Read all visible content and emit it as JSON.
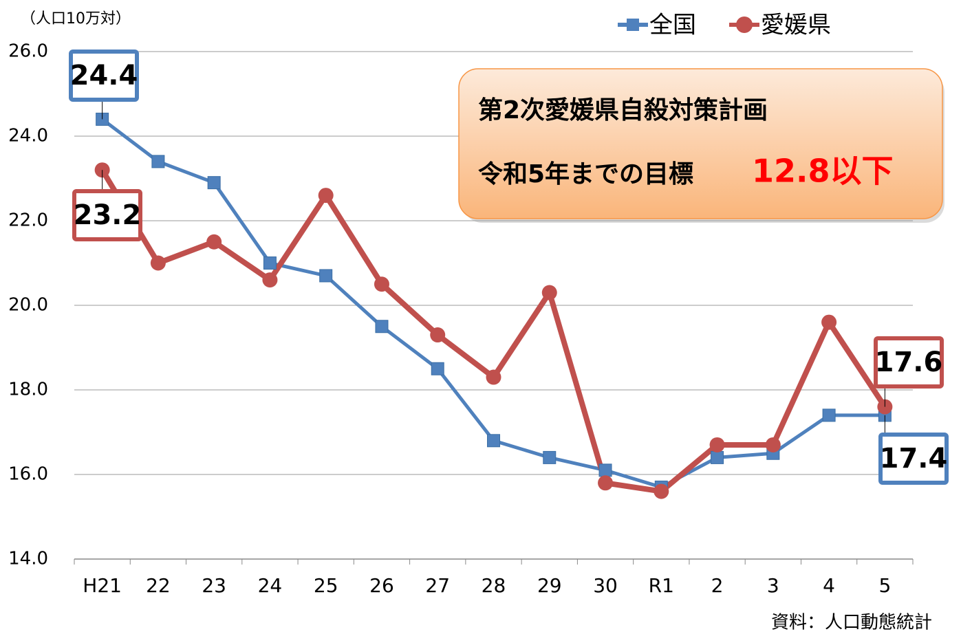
{
  "chart_data": {
    "type": "line",
    "y_unit_label": "（人口10万対）",
    "source": "資料：人口動態統計",
    "annotation": {
      "title": "第2次愛媛県自殺対策計画",
      "goal_label": "令和5年までの目標",
      "goal_value": "12.8以下"
    },
    "categories": [
      "H21",
      "22",
      "23",
      "24",
      "25",
      "26",
      "27",
      "28",
      "29",
      "30",
      "R1",
      "2",
      "3",
      "4",
      "5"
    ],
    "series": [
      {
        "name": "全国",
        "color": "#4f81bd",
        "marker": "square",
        "values": [
          24.4,
          23.4,
          22.9,
          21.0,
          20.7,
          19.5,
          18.5,
          16.8,
          16.4,
          16.1,
          15.7,
          16.4,
          16.5,
          17.4,
          17.4
        ]
      },
      {
        "name": "愛媛県",
        "color": "#c0504d",
        "marker": "circle",
        "values": [
          23.2,
          21.0,
          21.5,
          20.6,
          22.6,
          20.5,
          19.3,
          18.3,
          20.3,
          15.8,
          15.6,
          16.7,
          16.7,
          19.6,
          17.6
        ]
      }
    ],
    "ylim": [
      14,
      26
    ],
    "yticks": [
      {
        "value": 14,
        "label": "14.0"
      },
      {
        "value": 16,
        "label": "16.0"
      },
      {
        "value": 18,
        "label": "18.0"
      },
      {
        "value": 20,
        "label": "20.0"
      },
      {
        "value": 22,
        "label": "22.0"
      },
      {
        "value": 24,
        "label": "24.0"
      },
      {
        "value": 26,
        "label": "26.0"
      }
    ],
    "grid": true
  }
}
